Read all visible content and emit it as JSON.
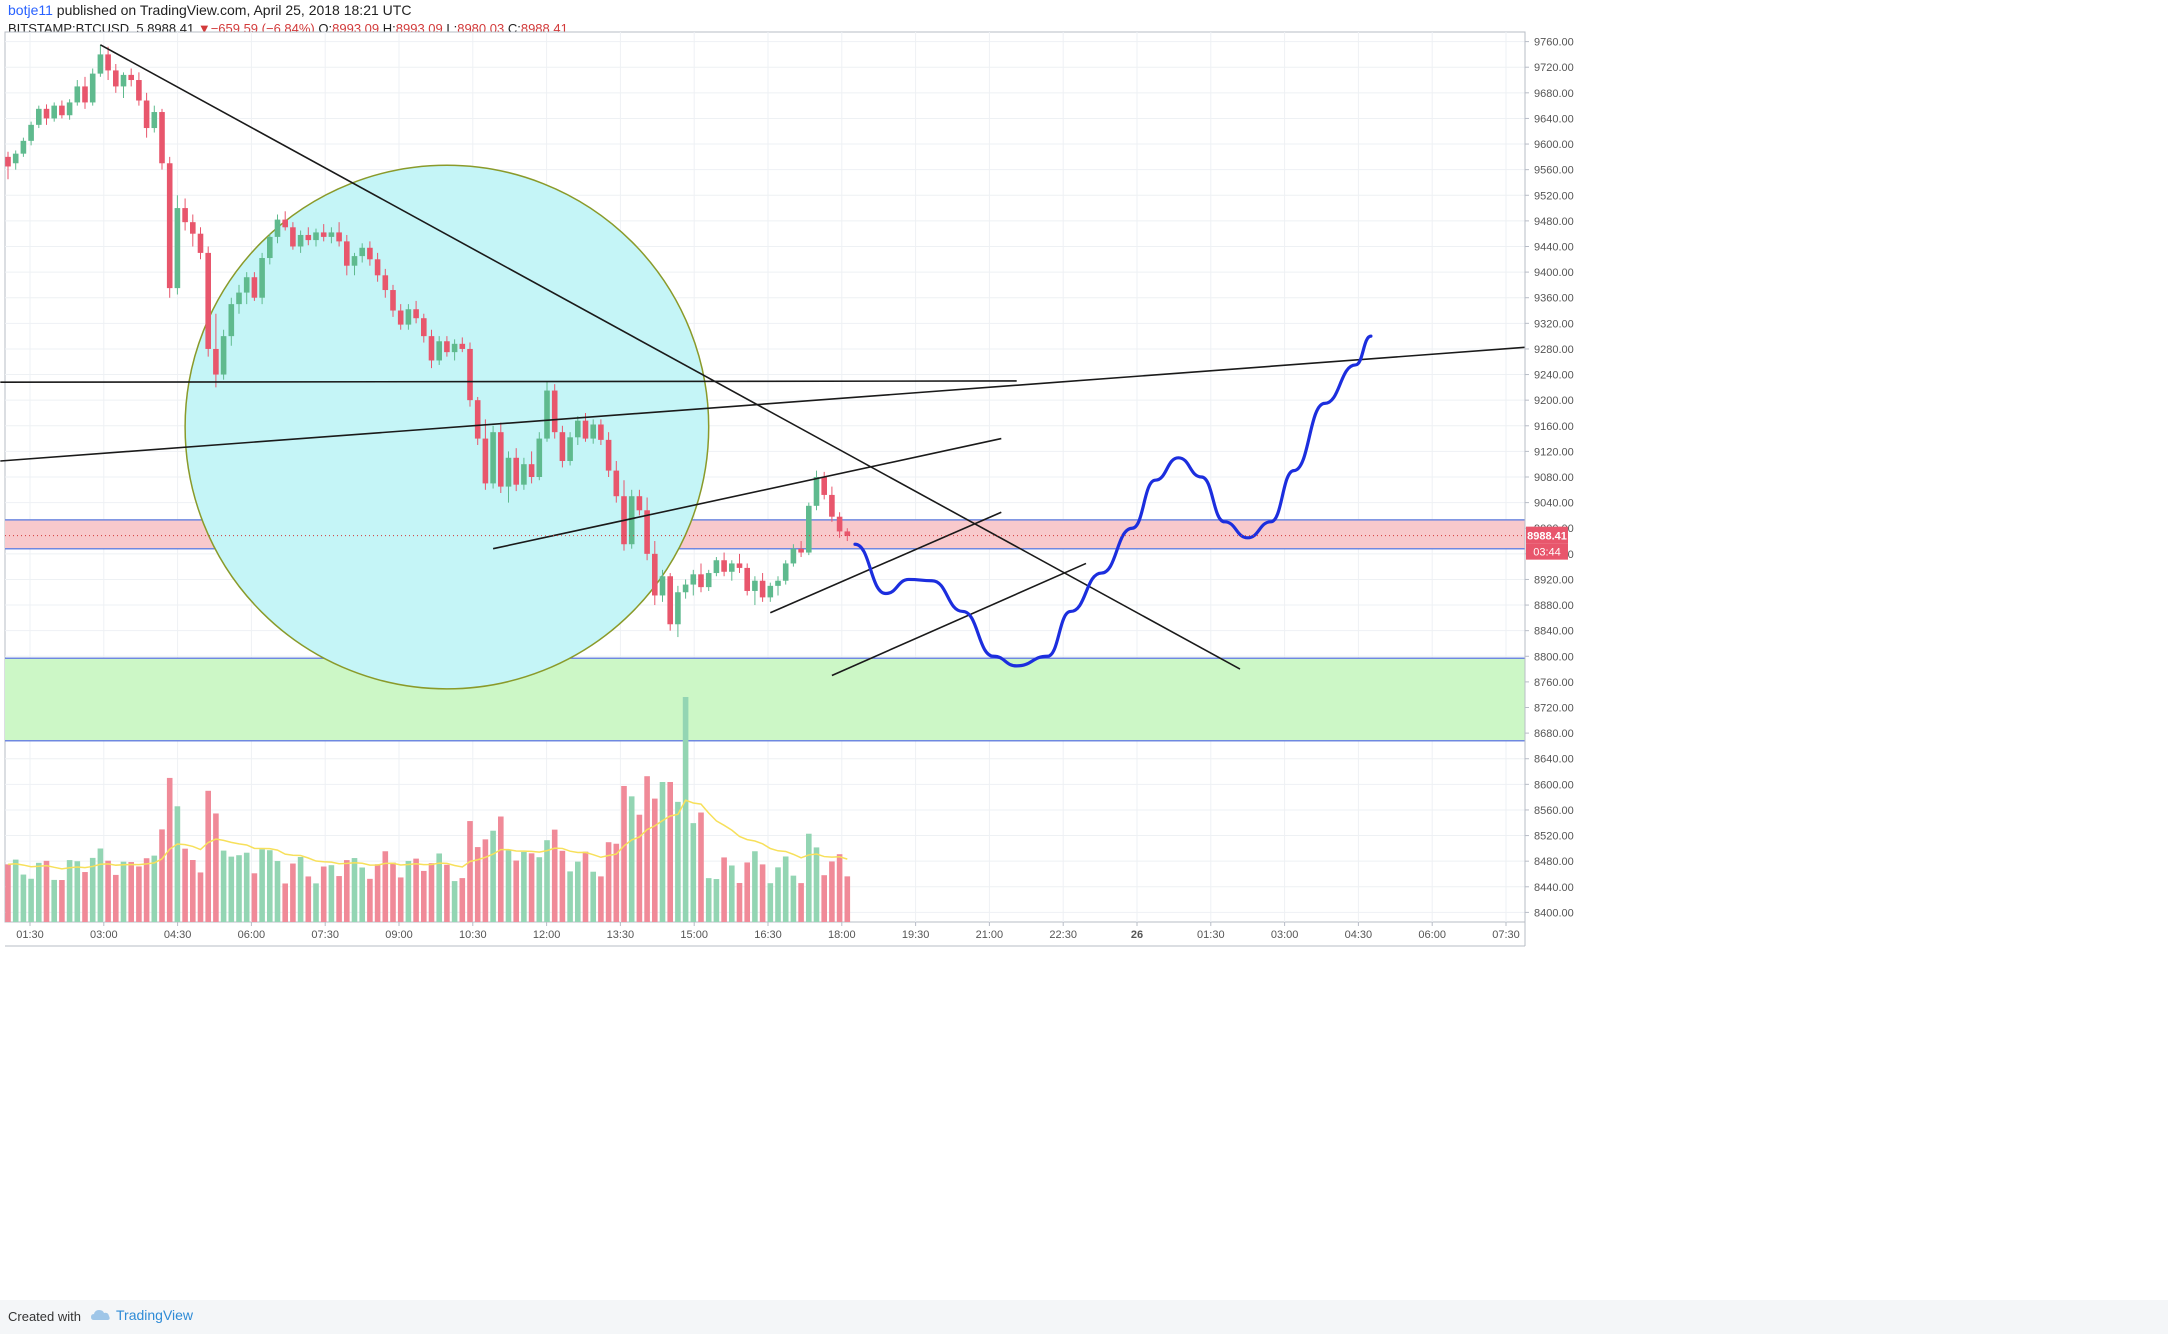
{
  "header": {
    "user": "botje11",
    "published_text": "published on TradingView.com, April 25, 2018 18:21 UTC",
    "symbol": "BITSTAMP:BTCUSD, 5",
    "last": "8988.41",
    "change": "−659.59 (−6.84%)",
    "o_label": "O:",
    "o": "8993.09",
    "h_label": "H:",
    "h": "8993.09",
    "l_label": "L:",
    "l": "8980.03",
    "c_label": "C:",
    "c": "8988.41"
  },
  "footer": {
    "created_with": "Created with",
    "brand": "TradingView"
  },
  "colors": {
    "up": "#5fba8e",
    "down": "#e8566c",
    "volume_up": "#93d5b3",
    "volume_down": "#f08a98",
    "volume_ma": "#f7e05b",
    "drawing": "#1a1a1a",
    "projection": "#1c2ede",
    "resistance_zone": "#f8c9cc",
    "support_zone": "#ccf7c6",
    "zone_border": "#6f88e0",
    "ellipse_fill": "#c5f5f7",
    "ellipse_stroke": "#8a9a2a"
  },
  "chart_data": {
    "type": "candlestick",
    "y_ticks": [
      "9760.00",
      "9720.00",
      "9680.00",
      "9640.00",
      "9600.00",
      "9560.00",
      "9520.00",
      "9480.00",
      "9440.00",
      "9400.00",
      "9360.00",
      "9320.00",
      "9280.00",
      "9240.00",
      "9200.00",
      "9160.00",
      "9120.00",
      "9080.00",
      "9040.00",
      "9000.00",
      "8960.00",
      "8920.00",
      "8880.00",
      "8840.00",
      "8800.00",
      "8760.00",
      "8720.00",
      "8680.00",
      "8640.00",
      "8600.00",
      "8560.00",
      "8520.00",
      "8480.00",
      "8440.00",
      "8400.00"
    ],
    "x_ticks": [
      "01:30",
      "03:00",
      "04:30",
      "06:00",
      "07:30",
      "09:00",
      "10:30",
      "12:00",
      "13:30",
      "15:00",
      "16:30",
      "18:00",
      "19:30",
      "21:00",
      "22:30",
      "26",
      "01:30",
      "03:00",
      "04:30",
      "06:00",
      "07:30"
    ],
    "ylim": [
      8385,
      9775
    ],
    "price_label": "8988.41",
    "countdown_label": "03:44",
    "candles_approx": [
      [
        0,
        9580,
        9588,
        9545,
        9565
      ],
      [
        1,
        9570,
        9590,
        9560,
        9585
      ],
      [
        2,
        9585,
        9610,
        9580,
        9605
      ],
      [
        3,
        9605,
        9635,
        9598,
        9630
      ],
      [
        4,
        9630,
        9660,
        9625,
        9655
      ],
      [
        5,
        9655,
        9662,
        9630,
        9640
      ],
      [
        6,
        9640,
        9665,
        9635,
        9660
      ],
      [
        7,
        9660,
        9668,
        9640,
        9645
      ],
      [
        8,
        9645,
        9670,
        9638,
        9665
      ],
      [
        9,
        9665,
        9700,
        9660,
        9690
      ],
      [
        10,
        9690,
        9705,
        9655,
        9665
      ],
      [
        11,
        9665,
        9718,
        9660,
        9710
      ],
      [
        12,
        9710,
        9755,
        9705,
        9740
      ],
      [
        13,
        9740,
        9752,
        9700,
        9715
      ],
      [
        14,
        9715,
        9725,
        9680,
        9690
      ],
      [
        15,
        9690,
        9712,
        9672,
        9708
      ],
      [
        16,
        9708,
        9718,
        9690,
        9700
      ],
      [
        17,
        9700,
        9712,
        9660,
        9668
      ],
      [
        18,
        9668,
        9680,
        9610,
        9625
      ],
      [
        19,
        9625,
        9660,
        9618,
        9650
      ],
      [
        20,
        9650,
        9655,
        9560,
        9570
      ],
      [
        21,
        9570,
        9580,
        9360,
        9375
      ],
      [
        22,
        9375,
        9520,
        9365,
        9500
      ],
      [
        23,
        9500,
        9515,
        9465,
        9478
      ],
      [
        24,
        9478,
        9490,
        9440,
        9460
      ],
      [
        25,
        9460,
        9470,
        9420,
        9430
      ],
      [
        26,
        9430,
        9440,
        9268,
        9280
      ],
      [
        27,
        9280,
        9335,
        9220,
        9240
      ],
      [
        28,
        9240,
        9310,
        9232,
        9300
      ],
      [
        29,
        9300,
        9360,
        9285,
        9350
      ],
      [
        30,
        9350,
        9380,
        9335,
        9368
      ],
      [
        31,
        9368,
        9400,
        9350,
        9392
      ],
      [
        32,
        9392,
        9400,
        9355,
        9360
      ],
      [
        33,
        9360,
        9430,
        9350,
        9422
      ],
      [
        34,
        9422,
        9460,
        9412,
        9455
      ],
      [
        35,
        9455,
        9490,
        9445,
        9482
      ],
      [
        36,
        9482,
        9495,
        9465,
        9470
      ],
      [
        37,
        9470,
        9478,
        9435,
        9440
      ],
      [
        38,
        9440,
        9465,
        9430,
        9458
      ],
      [
        39,
        9458,
        9470,
        9442,
        9450
      ],
      [
        40,
        9450,
        9468,
        9440,
        9462
      ],
      [
        41,
        9462,
        9475,
        9448,
        9455
      ],
      [
        42,
        9455,
        9470,
        9445,
        9462
      ],
      [
        43,
        9462,
        9478,
        9440,
        9448
      ],
      [
        44,
        9448,
        9458,
        9395,
        9410
      ],
      [
        45,
        9410,
        9430,
        9395,
        9425
      ],
      [
        46,
        9425,
        9445,
        9415,
        9438
      ],
      [
        47,
        9438,
        9448,
        9410,
        9420
      ],
      [
        48,
        9420,
        9430,
        9385,
        9395
      ],
      [
        49,
        9395,
        9405,
        9360,
        9372
      ],
      [
        50,
        9372,
        9380,
        9330,
        9340
      ],
      [
        51,
        9340,
        9350,
        9310,
        9318
      ],
      [
        52,
        9318,
        9350,
        9310,
        9342
      ],
      [
        53,
        9342,
        9355,
        9320,
        9328
      ],
      [
        54,
        9328,
        9335,
        9290,
        9300
      ],
      [
        55,
        9300,
        9310,
        9250,
        9262
      ],
      [
        56,
        9262,
        9300,
        9255,
        9292
      ],
      [
        57,
        9292,
        9300,
        9268,
        9275
      ],
      [
        58,
        9275,
        9295,
        9262,
        9288
      ],
      [
        59,
        9288,
        9298,
        9275,
        9280
      ],
      [
        60,
        9280,
        9290,
        9190,
        9200
      ],
      [
        61,
        9200,
        9205,
        9130,
        9140
      ],
      [
        62,
        9140,
        9170,
        9060,
        9070
      ],
      [
        63,
        9070,
        9160,
        9062,
        9150
      ],
      [
        64,
        9150,
        9165,
        9055,
        9065
      ],
      [
        65,
        9065,
        9120,
        9040,
        9110
      ],
      [
        66,
        9110,
        9125,
        9058,
        9068
      ],
      [
        67,
        9068,
        9110,
        9060,
        9100
      ],
      [
        68,
        9100,
        9120,
        9070,
        9080
      ],
      [
        69,
        9080,
        9150,
        9075,
        9140
      ],
      [
        70,
        9140,
        9230,
        9135,
        9215
      ],
      [
        71,
        9215,
        9225,
        9140,
        9150
      ],
      [
        72,
        9150,
        9160,
        9095,
        9105
      ],
      [
        73,
        9105,
        9150,
        9098,
        9142
      ],
      [
        74,
        9142,
        9175,
        9130,
        9168
      ],
      [
        75,
        9168,
        9180,
        9135,
        9140
      ],
      [
        76,
        9140,
        9170,
        9132,
        9162
      ],
      [
        77,
        9162,
        9170,
        9130,
        9138
      ],
      [
        78,
        9138,
        9150,
        9080,
        9090
      ],
      [
        79,
        9090,
        9105,
        9040,
        9050
      ],
      [
        80,
        9050,
        9075,
        8965,
        8975
      ],
      [
        81,
        8975,
        9060,
        8968,
        9050
      ],
      [
        82,
        9050,
        9060,
        9020,
        9028
      ],
      [
        83,
        9028,
        9048,
        8950,
        8960
      ],
      [
        84,
        8960,
        8980,
        8880,
        8895
      ],
      [
        85,
        8895,
        8935,
        8885,
        8925
      ],
      [
        86,
        8925,
        8930,
        8840,
        8850
      ],
      [
        87,
        8850,
        8910,
        8830,
        8900
      ],
      [
        88,
        8900,
        8920,
        8890,
        8912
      ],
      [
        89,
        8912,
        8935,
        8895,
        8928
      ],
      [
        90,
        8928,
        8945,
        8900,
        8908
      ],
      [
        91,
        8908,
        8935,
        8902,
        8930
      ],
      [
        92,
        8930,
        8955,
        8925,
        8950
      ],
      [
        93,
        8950,
        8962,
        8925,
        8932
      ],
      [
        94,
        8932,
        8950,
        8918,
        8945
      ],
      [
        95,
        8945,
        8960,
        8930,
        8938
      ],
      [
        96,
        8938,
        8945,
        8895,
        8902
      ],
      [
        97,
        8902,
        8925,
        8880,
        8918
      ],
      [
        98,
        8918,
        8930,
        8885,
        8892
      ],
      [
        99,
        8892,
        8915,
        8885,
        8910
      ],
      [
        100,
        8910,
        8925,
        8895,
        8918
      ],
      [
        101,
        8918,
        8950,
        8912,
        8945
      ],
      [
        102,
        8945,
        8975,
        8940,
        8968
      ],
      [
        103,
        8968,
        8980,
        8955,
        8962
      ],
      [
        104,
        8962,
        9040,
        8958,
        9035
      ],
      [
        105,
        9035,
        9090,
        9028,
        9080
      ],
      [
        106,
        9080,
        9088,
        9045,
        9052
      ],
      [
        107,
        9052,
        9065,
        9010,
        9018
      ],
      [
        108,
        9018,
        9025,
        8985,
        8995
      ],
      [
        109,
        8995,
        9000,
        8980,
        8988
      ]
    ],
    "drawings": {
      "trendlines": [
        {
          "from": [
            12,
            9755
          ],
          "to": [
            160,
            8780
          ]
        },
        {
          "from": [
            -1,
            9228
          ],
          "to": [
            131,
            9230
          ]
        },
        {
          "from": [
            -1,
            9105
          ],
          "to": [
            250,
            9330
          ]
        },
        {
          "from": [
            63,
            8968
          ],
          "to": [
            129,
            9140
          ]
        },
        {
          "from": [
            99,
            8868
          ],
          "to": [
            129,
            9025
          ]
        },
        {
          "from": [
            107,
            8770
          ],
          "to": [
            140,
            8945
          ]
        }
      ],
      "resistance_zone": [
        8968,
        9013
      ],
      "support_zone": [
        8668,
        8797
      ],
      "ellipse": {
        "center": [
          57,
          9158
        ],
        "rx": 34,
        "ry": 9158
      }
    }
  }
}
